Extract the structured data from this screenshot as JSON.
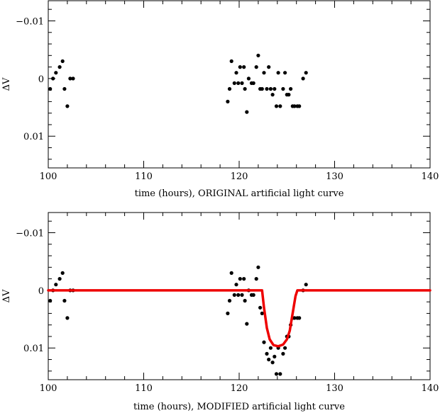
{
  "chart_data": [
    {
      "type": "scatter",
      "xlabel": "time (hours), ORIGINAL artificial light curve",
      "ylabel": "ΔV",
      "xlim": [
        100,
        140
      ],
      "ylim": [
        0.0155,
        -0.0135
      ],
      "y_inverted": true,
      "xticks": [
        100,
        110,
        120,
        130,
        140
      ],
      "xtick_labels": [
        "100",
        "110",
        "120",
        "130",
        "140"
      ],
      "yticks": [
        -0.01,
        0,
        0.01
      ],
      "ytick_labels": [
        "−0.01",
        "0",
        "0.01"
      ],
      "grid": false,
      "marker_color": "#000000",
      "series": [
        {
          "x": [
            100.2,
            100.5,
            100.8,
            101.2,
            101.5,
            101.7,
            102.0,
            102.3,
            102.6,
            118.8,
            119.0,
            119.2,
            119.5,
            119.7,
            119.9,
            120.1,
            120.3,
            120.5,
            120.6,
            120.8,
            121.0,
            121.3,
            121.5,
            121.8,
            122.0,
            122.2,
            122.4,
            122.6,
            122.9,
            123.1,
            123.3,
            123.5,
            123.7,
            123.9,
            124.1,
            124.3,
            124.6,
            124.8,
            125.0,
            125.2,
            125.4,
            125.6,
            125.8,
            126.1,
            126.3,
            126.7,
            127.0
          ],
          "y": [
            0.0018,
            0.0,
            -0.001,
            -0.002,
            -0.003,
            0.0018,
            0.0048,
            0.0,
            0.0,
            0.004,
            0.0018,
            -0.003,
            0.0008,
            -0.001,
            0.0008,
            -0.002,
            0.0008,
            -0.002,
            0.0018,
            0.0058,
            0.0,
            0.0008,
            0.0008,
            -0.002,
            -0.004,
            0.0018,
            0.0018,
            -0.001,
            0.0018,
            -0.002,
            0.0018,
            0.0028,
            0.0018,
            0.0048,
            -0.001,
            0.0048,
            0.0018,
            -0.001,
            0.0028,
            0.0028,
            0.0018,
            0.0048,
            0.0048,
            0.0048,
            0.0048,
            0.0,
            -0.001
          ]
        }
      ]
    },
    {
      "type": "scatter",
      "xlabel": "time (hours), MODIFIED artificial light curve",
      "ylabel": "ΔV",
      "xlim": [
        100,
        140
      ],
      "ylim": [
        0.0155,
        -0.0135
      ],
      "y_inverted": true,
      "xticks": [
        100,
        110,
        120,
        130,
        140
      ],
      "xtick_labels": [
        "100",
        "110",
        "120",
        "130",
        "140"
      ],
      "yticks": [
        -0.01,
        0,
        0.01
      ],
      "ytick_labels": [
        "−0.01",
        "0",
        "0.01"
      ],
      "grid": false,
      "marker_color": "#000000",
      "line_color": "#ee0000",
      "series": [
        {
          "x": [
            100.2,
            100.5,
            100.8,
            101.2,
            101.5,
            101.7,
            102.0,
            102.3,
            102.6,
            118.8,
            119.0,
            119.2,
            119.5,
            119.7,
            119.9,
            120.1,
            120.3,
            120.5,
            120.6,
            120.8,
            121.0,
            121.3,
            121.5,
            121.8,
            122.0,
            122.2,
            122.4,
            122.6,
            122.9,
            123.1,
            123.3,
            123.5,
            123.7,
            123.9,
            124.1,
            124.3,
            124.6,
            124.8,
            125.0,
            125.2,
            125.4,
            125.6,
            125.8,
            126.1,
            126.3,
            126.7,
            127.0
          ],
          "y": [
            0.0018,
            0.0,
            -0.001,
            -0.002,
            -0.003,
            0.0018,
            0.0048,
            0.0,
            0.0,
            0.004,
            0.0018,
            -0.003,
            0.0008,
            -0.001,
            0.0008,
            -0.002,
            0.0008,
            -0.002,
            0.0018,
            0.0058,
            0.0,
            0.0008,
            0.0008,
            -0.002,
            -0.004,
            0.003,
            0.004,
            0.009,
            0.011,
            0.012,
            0.01,
            0.0125,
            0.0115,
            0.0145,
            0.01,
            0.0145,
            0.011,
            0.01,
            0.008,
            0.008,
            0.006,
            0.0048,
            0.0048,
            0.0048,
            0.0048,
            0.0,
            -0.001
          ]
        },
        {
          "style": "line",
          "x": [
            100,
            122.4,
            122.6,
            122.9,
            123.2,
            123.6,
            124.1,
            124.6,
            125.0,
            125.3,
            125.5,
            125.7,
            125.9,
            126.1,
            140
          ],
          "y": [
            0.0,
            0.0,
            0.003,
            0.0065,
            0.0085,
            0.0095,
            0.0097,
            0.0094,
            0.0085,
            0.007,
            0.005,
            0.003,
            0.001,
            0.0,
            0.0
          ]
        }
      ]
    }
  ]
}
